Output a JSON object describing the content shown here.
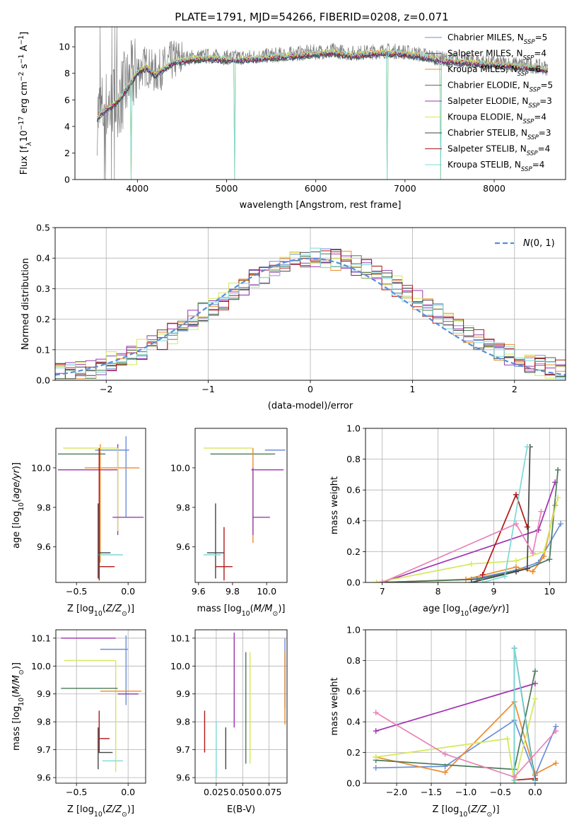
{
  "figure": {
    "title": "PLATE=1791, MJD=54266, FIBERID=0208, z=0.071"
  },
  "model_colors": {
    "Chabrier MILES": "#6a8fd8",
    "Salpeter MILES": "#8e44ad",
    "Kroupa MILES": "#ee8a2e",
    "Chabrier ELODIE": "#4a7a5a",
    "Salpeter ELODIE": "#a030b0",
    "Kroupa ELODIE": "#d4e85a",
    "Chabrier STELIB": "#444444",
    "Salpeter STELIB": "#b01818",
    "Kroupa STELIB": "#7dd8d8",
    "salpeter_pink": "#e882b8",
    "data_grey": "#808080",
    "normal_curve": "#5b8dd8"
  },
  "chart_data": [
    {
      "id": "spectrum",
      "type": "line",
      "title": "PLATE=1791, MJD=54266, FIBERID=0208, z=0.071",
      "xlabel": "wavelength [Angstrom, rest frame]",
      "ylabel": "Flux [f_λ10^-17 erg cm^-2 s^-1 A^-1]",
      "xlim": [
        3300,
        8800
      ],
      "ylim": [
        0,
        11.5
      ],
      "xticks": [
        4000,
        5000,
        6000,
        7000,
        8000
      ],
      "yticks": [
        0,
        2,
        4,
        6,
        8,
        10
      ],
      "grid": false,
      "legend_position": "right",
      "legend": [
        {
          "label": "Chabrier MILES, N_SSP=5",
          "color": "#6a8fd8"
        },
        {
          "label": "Salpeter MILES, N_SSP=4",
          "color": "#8e44ad"
        },
        {
          "label": "Kroupa MILES, N_SSP=6",
          "color": "#ee8a2e"
        },
        {
          "label": "Chabrier ELODIE, N_SSP=5",
          "color": "#4a7a5a"
        },
        {
          "label": "Salpeter ELODIE, N_SSP=3",
          "color": "#a030b0"
        },
        {
          "label": "Kroupa ELODIE, N_SSP=4",
          "color": "#d4e85a"
        },
        {
          "label": "Chabrier STELIB, N_SSP=3",
          "color": "#444444"
        },
        {
          "label": "Salpeter STELIB, N_SSP=4",
          "color": "#b01818"
        },
        {
          "label": "Kroupa STELIB, N_SSP=4",
          "color": "#7dd8d8"
        }
      ],
      "continuum": {
        "x": [
          3550,
          3600,
          3700,
          3800,
          3900,
          4000,
          4100,
          4200,
          4300,
          4400,
          4600,
          4800,
          5000,
          5200,
          5400,
          5600,
          5800,
          6000,
          6200,
          6400,
          6600,
          6800,
          7000,
          7200,
          7400,
          7600,
          7800,
          8000,
          8200,
          8400,
          8600
        ],
        "y": [
          4.8,
          5.2,
          5.6,
          6.2,
          7.2,
          8.2,
          8.6,
          8.0,
          8.5,
          9.0,
          9.2,
          9.3,
          9.2,
          9.2,
          9.3,
          9.4,
          9.5,
          9.6,
          9.7,
          9.5,
          9.6,
          9.7,
          9.6,
          9.4,
          9.1,
          9.0,
          8.9,
          8.8,
          8.7,
          8.6,
          8.4
        ]
      },
      "dips": [
        {
          "x": 3930,
          "to": 0
        },
        {
          "x": 5090,
          "to": 0
        },
        {
          "x": 6800,
          "to": 0
        },
        {
          "x": 7400,
          "to": 0
        }
      ]
    },
    {
      "id": "residual_hist",
      "type": "histogram",
      "xlabel": "(data-model)/error",
      "ylabel": "Normed distribution",
      "xlim": [
        -2.5,
        2.5
      ],
      "ylim": [
        0,
        0.5
      ],
      "xticks": [
        -2,
        -1,
        0,
        1,
        2
      ],
      "yticks": [
        0.0,
        0.1,
        0.2,
        0.3,
        0.4,
        0.5
      ],
      "grid": true,
      "bin_width": 0.1,
      "bin_start": -2.5,
      "legend": [
        {
          "label": "N(0,1)",
          "style": "dashed",
          "color": "#5b8dd8"
        }
      ]
    },
    {
      "id": "age_vs_Z",
      "type": "errorbar",
      "xlabel": "Z [log10(Z/Z☉)]",
      "ylabel": "age [log10(age/yr)]",
      "xlim": [
        -0.7,
        0.17
      ],
      "ylim": [
        9.42,
        10.2
      ],
      "xticks": [
        -0.5,
        0.0
      ],
      "yticks": [
        9.6,
        9.8,
        10.0
      ],
      "grid": false,
      "points": [
        {
          "model": "Chabrier MILES",
          "x": -0.02,
          "y": 10.09,
          "xerr": [
            0.3,
            0.03
          ],
          "yerr": [
            0.34,
            0.07
          ]
        },
        {
          "model": "Kroupa MILES",
          "x": -0.27,
          "y": 10.0,
          "xerr": [
            0.15,
            0.38
          ],
          "yerr": [
            0.48,
            0.12
          ]
        },
        {
          "model": "Salpeter ELODIE",
          "x": -0.1,
          "y": 9.99,
          "xerr": [
            0.58,
            0.0
          ],
          "yerr": [
            0.33,
            0.13
          ]
        },
        {
          "model": "Kroupa ELODIE",
          "x": -0.1,
          "y": 10.1,
          "xerr": [
            0.53,
            0.0
          ],
          "yerr": [
            0.42,
            0.0
          ]
        },
        {
          "model": "Chabrier ELODIE",
          "x": -0.22,
          "y": 10.07,
          "xerr": [
            0.46,
            0.0
          ],
          "yerr": [
            0.0,
            0.0
          ]
        },
        {
          "model": "Salpeter MILES",
          "x": -0.15,
          "y": 9.75,
          "xerr": [
            0.0,
            0.3
          ],
          "yerr": [
            0.0,
            0.0
          ]
        },
        {
          "model": "Chabrier STELIB",
          "x": -0.29,
          "y": 9.57,
          "xerr": [
            0.0,
            0.12
          ],
          "yerr": [
            0.13,
            0.25
          ]
        },
        {
          "model": "Kroupa STELIB",
          "x": -0.29,
          "y": 9.56,
          "xerr": [
            0.0,
            0.24
          ],
          "yerr": [
            0.0,
            0.0
          ]
        },
        {
          "model": "Salpeter STELIB",
          "x": -0.28,
          "y": 9.5,
          "xerr": [
            0.0,
            0.15
          ],
          "yerr": [
            0.07,
            0.6
          ]
        }
      ]
    },
    {
      "id": "age_vs_mass",
      "type": "errorbar",
      "xlabel": "mass [log10(M/M☉)]",
      "ylabel": "",
      "xlim": [
        9.58,
        10.12
      ],
      "ylim": [
        9.42,
        10.2
      ],
      "xticks": [
        9.6,
        9.8,
        10.0
      ],
      "yticks": [
        9.6,
        9.8,
        10.0
      ],
      "grid": false,
      "points": [
        {
          "model": "Chabrier MILES",
          "x": 10.06,
          "y": 10.09,
          "xerr": [
            0.07,
            0.05
          ],
          "yerr": [
            0.0,
            0.0
          ]
        },
        {
          "model": "Kroupa ELODIE",
          "x": 9.92,
          "y": 10.1,
          "xerr": [
            0.29,
            0.0
          ],
          "yerr": [
            0.0,
            0.0
          ]
        },
        {
          "model": "Chabrier ELODIE",
          "x": 9.92,
          "y": 10.07,
          "xerr": [
            0.25,
            0.13
          ],
          "yerr": [
            0.0,
            0.0
          ]
        },
        {
          "model": "Salpeter ELODIE",
          "x": 9.97,
          "y": 9.99,
          "xerr": [
            0.06,
            0.13
          ],
          "yerr": [
            0.0,
            0.0
          ]
        },
        {
          "model": "Kroupa MILES",
          "x": 9.92,
          "y": 10.0,
          "xerr": [
            0.0,
            0.0
          ],
          "yerr": [
            0.38,
            0.1
          ]
        },
        {
          "model": "Salpeter MILES",
          "x": 9.92,
          "y": 9.75,
          "xerr": [
            0.0,
            0.1
          ],
          "yerr": [
            0.09,
            0.25
          ]
        },
        {
          "model": "Chabrier STELIB",
          "x": 9.7,
          "y": 9.57,
          "xerr": [
            0.05,
            0.05
          ],
          "yerr": [
            0.13,
            0.25
          ]
        },
        {
          "model": "Kroupa STELIB",
          "x": 9.68,
          "y": 9.56,
          "xerr": [
            0.05,
            0.05
          ],
          "yerr": [
            0.0,
            0.0
          ]
        },
        {
          "model": "Salpeter STELIB",
          "x": 9.75,
          "y": 9.5,
          "xerr": [
            0.05,
            0.05
          ],
          "yerr": [
            0.07,
            0.2
          ]
        }
      ]
    },
    {
      "id": "weight_vs_age",
      "type": "line",
      "xlabel": "age [log10(age/yr)]",
      "ylabel": "mass weight",
      "xlim": [
        6.7,
        10.3
      ],
      "ylim": [
        0,
        1.0
      ],
      "xticks": [
        7,
        8,
        9,
        10
      ],
      "yticks": [
        0.0,
        0.2,
        0.4,
        0.6,
        0.8,
        1.0
      ],
      "grid": true,
      "series": [
        {
          "model": "Chabrier MILES",
          "x": [
            7.0,
            8.6,
            9.4,
            9.8,
            10.2
          ],
          "y": [
            0.0,
            0.02,
            0.08,
            0.13,
            0.38
          ]
        },
        {
          "model": "Kroupa MILES",
          "x": [
            7.0,
            8.5,
            9.4,
            9.7,
            9.9,
            10.1
          ],
          "y": [
            0.0,
            0.02,
            0.1,
            0.07,
            0.17,
            0.5
          ]
        },
        {
          "model": "Salpeter ELODIE",
          "x": [
            7.0,
            9.8,
            10.1
          ],
          "y": [
            0.0,
            0.34,
            0.65
          ]
        },
        {
          "model": "Chabrier ELODIE",
          "x": [
            7.0,
            8.7,
            9.6,
            10.0,
            10.15
          ],
          "y": [
            0.0,
            0.02,
            0.09,
            0.15,
            0.73
          ]
        },
        {
          "model": "Kroupa ELODIE",
          "x": [
            6.9,
            8.6,
            9.4,
            9.9,
            10.15
          ],
          "y": [
            0.0,
            0.12,
            0.14,
            0.2,
            0.55
          ]
        },
        {
          "model": "Chabrier STELIB",
          "x": [
            8.6,
            9.4,
            9.6,
            9.65
          ],
          "y": [
            0.0,
            0.07,
            0.09,
            0.88
          ]
        },
        {
          "model": "Salpeter STELIB",
          "x": [
            8.8,
            9.4,
            9.6
          ],
          "y": [
            0.05,
            0.57,
            0.36
          ]
        },
        {
          "model": "Kroupa STELIB",
          "x": [
            8.8,
            9.2,
            9.6
          ],
          "y": [
            0.0,
            0.04,
            0.88
          ]
        },
        {
          "model": "Salpeter MILES",
          "x": [
            7.0,
            9.4,
            9.7,
            9.85
          ],
          "y": [
            0.0,
            0.38,
            0.19,
            0.46
          ]
        }
      ]
    },
    {
      "id": "mass_vs_Z",
      "type": "errorbar",
      "xlabel": "Z [log10(Z/Z☉)]",
      "ylabel": "mass [log10(M/M☉)]",
      "xlim": [
        -0.7,
        0.17
      ],
      "ylim": [
        9.58,
        10.13
      ],
      "xticks": [
        -0.5,
        0.0
      ],
      "yticks": [
        9.6,
        9.7,
        9.8,
        9.9,
        10.0,
        10.1
      ],
      "grid": true,
      "points": [
        {
          "model": "Salpeter ELODIE",
          "x": -0.15,
          "y": 10.1,
          "xerr": [
            0.5,
            0.03
          ],
          "yerr": [
            0.0,
            0.0
          ]
        },
        {
          "model": "Chabrier MILES",
          "x": -0.02,
          "y": 10.06,
          "xerr": [
            0.25,
            0.02
          ],
          "yerr": [
            0.2,
            0.05
          ]
        },
        {
          "model": "Kroupa ELODIE",
          "x": -0.12,
          "y": 10.02,
          "xerr": [
            0.5,
            0.0
          ],
          "yerr": [
            0.4,
            0.0
          ]
        },
        {
          "model": "Chabrier ELODIE",
          "x": -0.1,
          "y": 9.92,
          "xerr": [
            0.55,
            0.0
          ],
          "yerr": [
            0.0,
            0.0
          ]
        },
        {
          "model": "Kroupa MILES",
          "x": -0.27,
          "y": 9.91,
          "xerr": [
            0.0,
            0.4
          ],
          "yerr": [
            0.0,
            0.0
          ]
        },
        {
          "model": "Salpeter MILES",
          "x": -0.1,
          "y": 9.9,
          "xerr": [
            0.0,
            0.2
          ],
          "yerr": [
            0.0,
            0.0
          ]
        },
        {
          "model": "Salpeter STELIB",
          "x": -0.28,
          "y": 9.74,
          "xerr": [
            0.0,
            0.1
          ],
          "yerr": [
            0.05,
            0.1
          ]
        },
        {
          "model": "Chabrier STELIB",
          "x": -0.29,
          "y": 9.69,
          "xerr": [
            0.0,
            0.14
          ],
          "yerr": [
            0.06,
            0.09
          ]
        },
        {
          "model": "Kroupa STELIB",
          "x": -0.25,
          "y": 9.66,
          "xerr": [
            0.0,
            0.2
          ],
          "yerr": [
            0.0,
            0.0
          ]
        }
      ]
    },
    {
      "id": "mass_vs_EBV",
      "type": "errorbar",
      "xlabel": "E(B-V)",
      "ylabel": "",
      "xlim": [
        0.005,
        0.092
      ],
      "ylim": [
        9.58,
        10.13
      ],
      "xticks": [
        0.025,
        0.05,
        0.075
      ],
      "xticklabels": [
        "0.025",
        "0.050",
        "0.075"
      ],
      "yticks": [
        9.6,
        9.7,
        9.8,
        9.9,
        10.0,
        10.1
      ],
      "grid": true,
      "points": [
        {
          "model": "Salpeter STELIB",
          "x": 0.014,
          "y": 9.76,
          "yerr": [
            0.07,
            0.08
          ]
        },
        {
          "model": "Kroupa STELIB",
          "x": 0.025,
          "y": 9.7,
          "yerr": [
            0.1,
            0.1
          ]
        },
        {
          "model": "Chabrier STELIB",
          "x": 0.034,
          "y": 9.7,
          "yerr": [
            0.07,
            0.08
          ]
        },
        {
          "model": "Salpeter ELODIE",
          "x": 0.042,
          "y": 9.96,
          "yerr": [
            0.18,
            0.16
          ]
        },
        {
          "model": "Chabrier ELODIE",
          "x": 0.053,
          "y": 9.85,
          "yerr": [
            0.2,
            0.2
          ]
        },
        {
          "model": "Kroupa ELODIE",
          "x": 0.057,
          "y": 9.85,
          "yerr": [
            0.2,
            0.2
          ]
        },
        {
          "model": "Chabrier MILES",
          "x": 0.09,
          "y": 9.95,
          "yerr": [
            0.1,
            0.15
          ]
        },
        {
          "model": "Kroupa MILES",
          "x": 0.09,
          "y": 9.92,
          "yerr": [
            0.13,
            0.13
          ]
        }
      ]
    },
    {
      "id": "weight_vs_Z",
      "type": "line",
      "xlabel": "Z [log10(Z/Z☉)]",
      "ylabel": "mass weight",
      "xlim": [
        -2.45,
        0.45
      ],
      "ylim": [
        0,
        1.0
      ],
      "xticks": [
        -2.0,
        -1.5,
        -1.0,
        -0.5,
        0.0
      ],
      "yticks": [
        0.0,
        0.2,
        0.4,
        0.6,
        0.8,
        1.0
      ],
      "grid": true,
      "series": [
        {
          "model": "Chabrier MILES",
          "x": [
            -2.3,
            -1.3,
            -0.3,
            0.0,
            0.3
          ],
          "y": [
            0.1,
            0.11,
            0.41,
            0.05,
            0.37
          ]
        },
        {
          "model": "Kroupa MILES",
          "x": [
            -2.3,
            -1.3,
            -0.3,
            0.0,
            0.3
          ],
          "y": [
            0.17,
            0.07,
            0.53,
            0.06,
            0.13
          ]
        },
        {
          "model": "Salpeter ELODIE",
          "x": [
            -2.3,
            0.0
          ],
          "y": [
            0.34,
            0.65
          ]
        },
        {
          "model": "Chabrier ELODIE",
          "x": [
            -2.3,
            -0.3,
            0.0
          ],
          "y": [
            0.15,
            0.09,
            0.73
          ]
        },
        {
          "model": "Kroupa ELODIE",
          "x": [
            -2.3,
            -0.4,
            -0.3,
            0.0
          ],
          "y": [
            0.17,
            0.29,
            0.0,
            0.55
          ]
        },
        {
          "model": "Chabrier STELIB",
          "x": [
            -0.3,
            -0.3,
            0.0
          ],
          "y": [
            0.02,
            0.88,
            0.02
          ]
        },
        {
          "model": "Salpeter STELIB",
          "x": [
            -0.3,
            0.0
          ],
          "y": [
            0.02,
            0.03
          ]
        },
        {
          "model": "Kroupa STELIB",
          "x": [
            -0.3,
            -0.3,
            0.0
          ],
          "y": [
            0.02,
            0.88,
            0.0
          ]
        },
        {
          "model": "Salpeter MILES",
          "x": [
            -2.3,
            -1.3,
            -0.3,
            0.3
          ],
          "y": [
            0.46,
            0.19,
            0.04,
            0.34
          ]
        }
      ]
    }
  ]
}
